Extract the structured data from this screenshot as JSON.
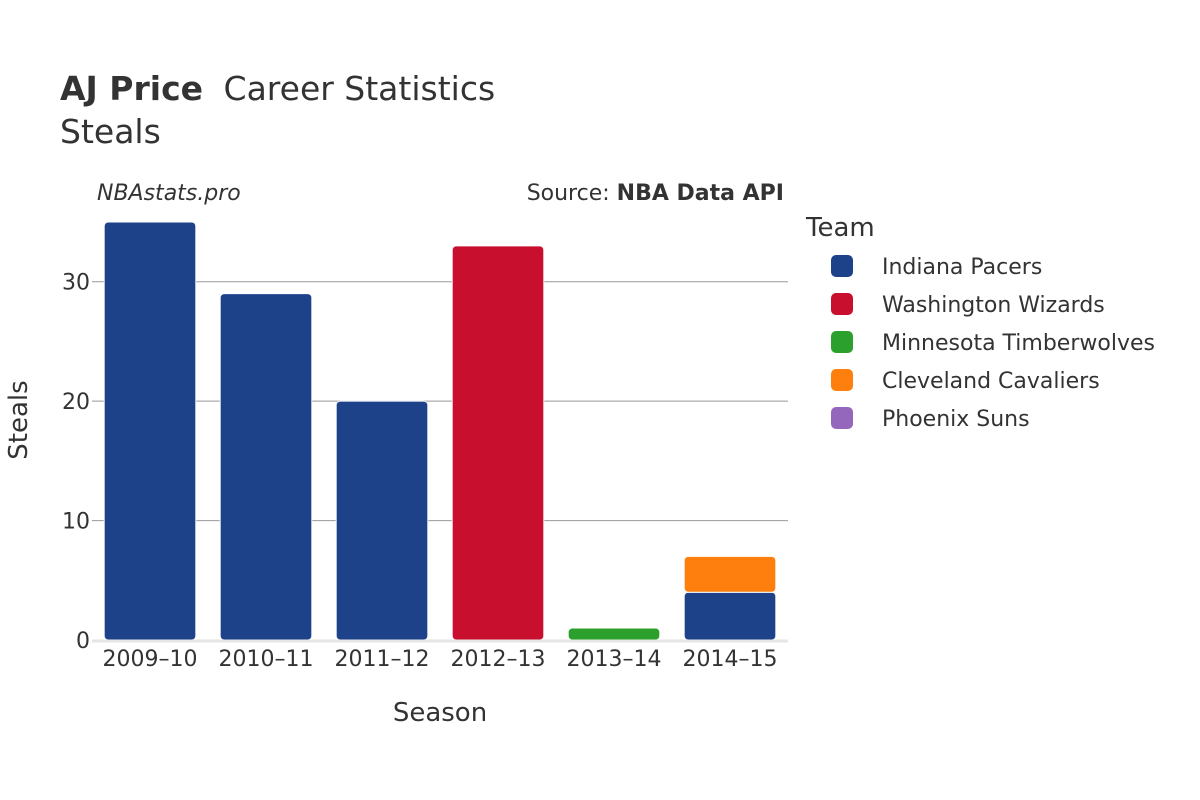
{
  "title": {
    "player": "AJ Price",
    "rest": "Career Statistics",
    "stat": "Steals"
  },
  "watermark": "NBAstats.pro",
  "source": {
    "prefix": "Source: ",
    "name": "NBA Data API"
  },
  "legend": {
    "title": "Team",
    "items": [
      {
        "label": "Indiana Pacers",
        "color": "#1d428a"
      },
      {
        "label": "Washington Wizards",
        "color": "#c8102e"
      },
      {
        "label": "Minnesota Timberwolves",
        "color": "#2ca02c"
      },
      {
        "label": "Cleveland Cavaliers",
        "color": "#ff7f0e"
      },
      {
        "label": "Phoenix Suns",
        "color": "#9467bd"
      }
    ]
  },
  "chart_data": {
    "type": "bar",
    "stacked": true,
    "title": "AJ Price Career Statistics — Steals",
    "xlabel": "Season",
    "ylabel": "Steals",
    "ylim": [
      0,
      35
    ],
    "yticks": [
      0,
      10,
      20,
      30
    ],
    "grid": true,
    "legend_position": "right",
    "categories": [
      "2009–10",
      "2010–11",
      "2011–12",
      "2012–13",
      "2013–14",
      "2014–15"
    ],
    "series": [
      {
        "name": "Indiana Pacers",
        "color": "#1d428a",
        "values": [
          35,
          29,
          20,
          0,
          0,
          4
        ]
      },
      {
        "name": "Washington Wizards",
        "color": "#c8102e",
        "values": [
          0,
          0,
          0,
          33,
          0,
          0
        ]
      },
      {
        "name": "Minnesota Timberwolves",
        "color": "#2ca02c",
        "values": [
          0,
          0,
          0,
          0,
          1,
          0
        ]
      },
      {
        "name": "Cleveland Cavaliers",
        "color": "#ff7f0e",
        "values": [
          0,
          0,
          0,
          0,
          0,
          3
        ]
      },
      {
        "name": "Phoenix Suns",
        "color": "#9467bd",
        "values": [
          0,
          0,
          0,
          0,
          0,
          0
        ]
      }
    ]
  }
}
